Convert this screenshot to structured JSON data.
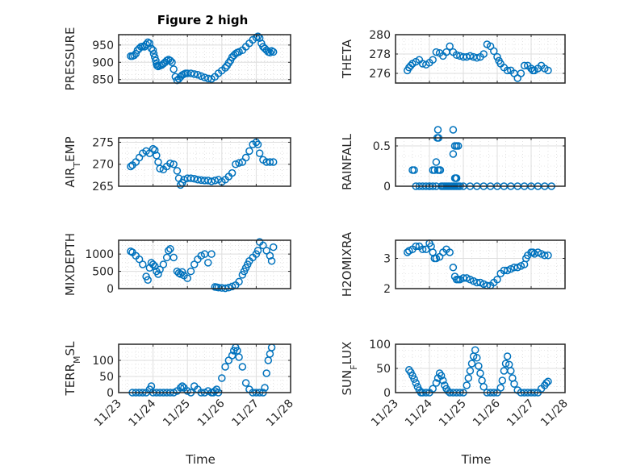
{
  "figure": {
    "title": "Figure 2 high"
  },
  "chart_data": [
    {
      "type": "scatter",
      "name": "pressure",
      "ylabel": "PRESSURE",
      "ylabel_sub": null,
      "xlabel": "",
      "xlim": [
        0,
        5
      ],
      "ylim": [
        840,
        980
      ],
      "yticks": [
        850,
        900,
        950
      ],
      "x": [
        0.35,
        0.4,
        0.45,
        0.5,
        0.55,
        0.6,
        0.65,
        0.7,
        0.75,
        0.8,
        0.85,
        0.9,
        0.95,
        1.0,
        1.02,
        1.05,
        1.08,
        1.1,
        1.12,
        1.15,
        1.2,
        1.25,
        1.3,
        1.35,
        1.4,
        1.45,
        1.5,
        1.55,
        1.6,
        1.65,
        1.7,
        1.75,
        1.8,
        1.85,
        1.9,
        1.95,
        2.0,
        2.1,
        2.2,
        2.3,
        2.4,
        2.5,
        2.6,
        2.7,
        2.8,
        2.9,
        3.0,
        3.1,
        3.15,
        3.2,
        3.25,
        3.3,
        3.35,
        3.4,
        3.45,
        3.5,
        3.6,
        3.7,
        3.8,
        3.9,
        4.0,
        4.05,
        4.1,
        4.15,
        4.2,
        4.25,
        4.3,
        4.35,
        4.4,
        4.45,
        4.5
      ],
      "y": [
        918,
        918,
        920,
        925,
        935,
        940,
        945,
        946,
        945,
        952,
        958,
        955,
        940,
        935,
        925,
        915,
        905,
        895,
        890,
        888,
        890,
        892,
        896,
        900,
        905,
        908,
        905,
        900,
        880,
        858,
        848,
        852,
        858,
        863,
        866,
        868,
        868,
        868,
        866,
        864,
        860,
        856,
        853,
        852,
        858,
        868,
        876,
        884,
        890,
        898,
        905,
        915,
        920,
        925,
        928,
        930,
        935,
        945,
        955,
        965,
        972,
        975,
        970,
        955,
        945,
        940,
        935,
        930,
        928,
        933,
        930
      ]
    },
    {
      "type": "scatter",
      "name": "theta",
      "ylabel": "THETA",
      "ylabel_sub": null,
      "xlabel": "",
      "xlim": [
        0,
        5
      ],
      "ylim": [
        275,
        280
      ],
      "yticks": [
        276,
        278,
        280
      ],
      "x": [
        0.35,
        0.4,
        0.45,
        0.5,
        0.6,
        0.7,
        0.8,
        0.9,
        1.0,
        1.1,
        1.2,
        1.3,
        1.4,
        1.5,
        1.6,
        1.7,
        1.8,
        1.9,
        2.0,
        2.1,
        2.2,
        2.3,
        2.4,
        2.5,
        2.6,
        2.7,
        2.8,
        2.9,
        3.0,
        3.05,
        3.1,
        3.2,
        3.3,
        3.4,
        3.5,
        3.6,
        3.7,
        3.8,
        3.9,
        4.0,
        4.05,
        4.1,
        4.2,
        4.3,
        4.4,
        4.5
      ],
      "y": [
        276.3,
        276.6,
        276.8,
        277.0,
        277.2,
        277.4,
        277.0,
        276.9,
        277.1,
        277.4,
        278.2,
        278.1,
        277.8,
        278.2,
        278.8,
        278.2,
        277.9,
        277.8,
        277.7,
        277.7,
        277.8,
        277.7,
        277.6,
        277.7,
        278.0,
        279.0,
        278.8,
        278.3,
        277.7,
        277.3,
        277.0,
        276.6,
        276.3,
        276.3,
        276.0,
        275.5,
        276.0,
        276.8,
        276.8,
        276.5,
        276.3,
        276.3,
        276.5,
        276.8,
        276.5,
        276.3
      ]
    },
    {
      "type": "scatter",
      "name": "air_temp",
      "ylabel": "AIR",
      "ylabel_sub": "T",
      "ylabel_suffix": "EMP",
      "xlabel": "",
      "xlim": [
        0,
        5
      ],
      "ylim": [
        265,
        276
      ],
      "yticks": [
        265,
        270,
        275
      ],
      "x": [
        0.35,
        0.4,
        0.5,
        0.6,
        0.7,
        0.8,
        0.9,
        1.0,
        1.05,
        1.1,
        1.15,
        1.2,
        1.3,
        1.4,
        1.5,
        1.6,
        1.7,
        1.75,
        1.8,
        1.85,
        1.9,
        2.0,
        2.1,
        2.2,
        2.3,
        2.4,
        2.5,
        2.6,
        2.7,
        2.8,
        2.9,
        3.0,
        3.1,
        3.2,
        3.3,
        3.4,
        3.5,
        3.6,
        3.7,
        3.8,
        3.9,
        4.0,
        4.05,
        4.1,
        4.2,
        4.3,
        4.4,
        4.5
      ],
      "y": [
        269.5,
        269.8,
        270.5,
        271.5,
        272.5,
        273.0,
        272.5,
        273.5,
        273.2,
        272.0,
        270.5,
        269.0,
        268.8,
        269.5,
        270.2,
        270.0,
        268.5,
        266.8,
        265.3,
        265.8,
        266.5,
        266.8,
        266.8,
        266.7,
        266.5,
        266.4,
        266.3,
        266.3,
        266.1,
        266.3,
        266.5,
        266.0,
        266.5,
        267.2,
        268.0,
        270.0,
        270.3,
        270.5,
        271.5,
        273.0,
        274.5,
        275.0,
        274.5,
        272.5,
        271.0,
        270.5,
        270.5,
        270.5
      ]
    },
    {
      "type": "scatter",
      "name": "rainfall",
      "ylabel": "RAINFALL",
      "ylabel_sub": null,
      "xlabel": "",
      "xlim": [
        0,
        5
      ],
      "ylim": [
        0,
        0.6
      ],
      "yticks": [
        0,
        0.5
      ],
      "x": [
        0.5,
        0.55,
        0.6,
        0.7,
        0.8,
        0.9,
        1.0,
        1.1,
        1.15,
        1.2,
        1.25,
        1.3,
        1.35,
        1.4,
        1.45,
        1.5,
        1.55,
        1.6,
        1.65,
        1.7,
        1.75,
        1.8,
        1.85,
        1.9,
        2.0,
        2.2,
        2.4,
        2.6,
        2.8,
        3.0,
        3.2,
        3.4,
        3.6,
        3.8,
        4.0,
        4.2,
        4.4,
        4.6,
        1.23,
        1.25,
        1.27,
        1.32,
        1.0,
        1.1,
        1.2,
        1.7,
        1.75,
        1.8,
        1.85,
        1.7,
        1.75,
        1.78,
        1.8
      ],
      "y": [
        0.2,
        0.2,
        0,
        0,
        0,
        0,
        0,
        0.2,
        0.2,
        0.3,
        0.2,
        0.2,
        0,
        0,
        0,
        0,
        0,
        0,
        0,
        0,
        0,
        0,
        0,
        0,
        0,
        0,
        0,
        0,
        0,
        0,
        0,
        0,
        0,
        0,
        0,
        0,
        0,
        0,
        0.6,
        0.7,
        0.6,
        0.2,
        0,
        0,
        0,
        0.7,
        0.5,
        0.5,
        0.5,
        0.4,
        0.1,
        0.1,
        0.1
      ]
    },
    {
      "type": "scatter",
      "name": "mixdepth",
      "ylabel": "MIXDEPTH",
      "ylabel_sub": null,
      "xlabel": "",
      "xlim": [
        0,
        5
      ],
      "ylim": [
        0,
        1400
      ],
      "yticks": [
        0,
        500,
        1000
      ],
      "x": [
        0.35,
        0.4,
        0.5,
        0.6,
        0.7,
        0.8,
        0.85,
        0.9,
        0.95,
        1.0,
        1.05,
        1.1,
        1.15,
        1.2,
        1.3,
        1.4,
        1.45,
        1.5,
        1.6,
        1.7,
        1.75,
        1.8,
        1.85,
        1.9,
        2.0,
        2.1,
        2.2,
        2.3,
        2.4,
        2.5,
        2.6,
        2.7,
        2.8,
        2.85,
        2.9,
        3.0,
        3.1,
        3.2,
        3.3,
        3.4,
        3.5,
        3.6,
        3.65,
        3.7,
        3.75,
        3.8,
        3.9,
        4.0,
        4.05,
        4.1,
        4.2,
        4.3,
        4.4,
        4.45,
        4.5
      ],
      "y": [
        1080,
        1050,
        950,
        850,
        700,
        350,
        250,
        600,
        750,
        700,
        650,
        500,
        420,
        550,
        700,
        900,
        1100,
        1150,
        900,
        500,
        450,
        420,
        480,
        380,
        300,
        500,
        700,
        850,
        950,
        1000,
        750,
        1000,
        50,
        40,
        30,
        20,
        10,
        30,
        60,
        100,
        200,
        400,
        500,
        600,
        700,
        800,
        900,
        1000,
        1100,
        1350,
        1250,
        1100,
        950,
        800,
        1200
      ]
    },
    {
      "type": "scatter",
      "name": "h2omixra",
      "ylabel": "H2OMIXRA",
      "ylabel_sub": null,
      "xlabel": "",
      "xlim": [
        0,
        5
      ],
      "ylim": [
        2,
        3.6
      ],
      "yticks": [
        2,
        3
      ],
      "x": [
        0.35,
        0.4,
        0.5,
        0.6,
        0.7,
        0.8,
        0.9,
        1.0,
        1.05,
        1.1,
        1.15,
        1.2,
        1.3,
        1.4,
        1.5,
        1.6,
        1.7,
        1.75,
        1.8,
        1.85,
        1.9,
        2.0,
        2.1,
        2.2,
        2.3,
        2.4,
        2.5,
        2.6,
        2.7,
        2.8,
        2.9,
        3.0,
        3.1,
        3.2,
        3.3,
        3.4,
        3.5,
        3.6,
        3.7,
        3.8,
        3.85,
        3.9,
        4.0,
        4.05,
        4.1,
        4.2,
        4.3,
        4.4,
        4.5
      ],
      "y": [
        3.2,
        3.25,
        3.3,
        3.4,
        3.4,
        3.3,
        3.3,
        3.5,
        3.4,
        3.2,
        3.0,
        3.0,
        3.05,
        3.2,
        3.3,
        3.2,
        2.7,
        2.4,
        2.3,
        2.3,
        2.3,
        2.35,
        2.35,
        2.3,
        2.25,
        2.2,
        2.2,
        2.15,
        2.1,
        2.1,
        2.2,
        2.3,
        2.5,
        2.6,
        2.6,
        2.65,
        2.7,
        2.7,
        2.75,
        2.8,
        3.0,
        3.1,
        3.2,
        3.2,
        3.15,
        3.2,
        3.15,
        3.1,
        3.1
      ]
    },
    {
      "type": "scatter",
      "name": "terr_msl",
      "ylabel": "TERR",
      "ylabel_sub": "M",
      "ylabel_suffix": "SL",
      "xlabel": "Time",
      "xlim": [
        0,
        5
      ],
      "ylim": [
        0,
        150
      ],
      "yticks": [
        0,
        50,
        100
      ],
      "xticklabels": [
        "11/23",
        "11/24",
        "11/25",
        "11/26",
        "11/27",
        "11/28"
      ],
      "x": [
        0.4,
        0.5,
        0.6,
        0.7,
        0.8,
        0.9,
        0.95,
        1.0,
        1.1,
        1.2,
        1.3,
        1.4,
        1.5,
        1.6,
        1.7,
        1.8,
        1.85,
        1.9,
        2.0,
        2.1,
        2.2,
        2.3,
        2.4,
        2.5,
        2.6,
        2.7,
        2.75,
        2.8,
        2.85,
        2.9,
        3.0,
        3.1,
        3.2,
        3.3,
        3.35,
        3.4,
        3.45,
        3.5,
        3.6,
        3.7,
        3.8,
        3.9,
        4.0,
        4.1,
        4.2,
        4.25,
        4.3,
        4.35,
        4.4,
        4.45
      ],
      "y": [
        0,
        0,
        0,
        0,
        0,
        10,
        20,
        0,
        0,
        0,
        0,
        0,
        0,
        0,
        5,
        15,
        20,
        15,
        5,
        0,
        20,
        10,
        0,
        0,
        5,
        0,
        0,
        5,
        10,
        0,
        45,
        80,
        100,
        115,
        130,
        140,
        130,
        110,
        80,
        30,
        10,
        0,
        0,
        0,
        0,
        15,
        60,
        100,
        120,
        140
      ]
    },
    {
      "type": "scatter",
      "name": "sun_flux",
      "ylabel": "SUN",
      "ylabel_sub": "F",
      "ylabel_suffix": "LUX",
      "xlabel": "Time",
      "xlim": [
        0,
        5
      ],
      "ylim": [
        0,
        100
      ],
      "yticks": [
        0,
        50,
        100
      ],
      "xticklabels": [
        "11/23",
        "11/24",
        "11/25",
        "11/26",
        "11/27",
        "11/28"
      ],
      "x": [
        0.4,
        0.45,
        0.5,
        0.55,
        0.6,
        0.65,
        0.7,
        0.75,
        0.8,
        0.9,
        1.0,
        1.1,
        1.2,
        1.25,
        1.3,
        1.35,
        1.4,
        1.45,
        1.5,
        1.55,
        1.6,
        1.7,
        1.8,
        1.9,
        2.0,
        2.1,
        2.15,
        2.2,
        2.25,
        2.3,
        2.35,
        2.4,
        2.45,
        2.5,
        2.55,
        2.6,
        2.7,
        2.8,
        2.9,
        3.0,
        3.1,
        3.15,
        3.2,
        3.25,
        3.3,
        3.35,
        3.4,
        3.45,
        3.5,
        3.6,
        3.7,
        3.8,
        3.9,
        4.0,
        4.1,
        4.2,
        4.3,
        4.4,
        4.45,
        4.5
      ],
      "y": [
        47,
        42,
        35,
        28,
        20,
        12,
        5,
        0,
        0,
        0,
        0,
        8,
        20,
        30,
        40,
        35,
        25,
        15,
        8,
        3,
        0,
        0,
        0,
        0,
        0,
        15,
        30,
        45,
        60,
        75,
        88,
        72,
        55,
        40,
        25,
        12,
        0,
        0,
        0,
        0,
        10,
        25,
        45,
        60,
        75,
        58,
        45,
        30,
        18,
        5,
        0,
        0,
        0,
        0,
        0,
        0,
        8,
        15,
        20,
        23
      ]
    }
  ]
}
